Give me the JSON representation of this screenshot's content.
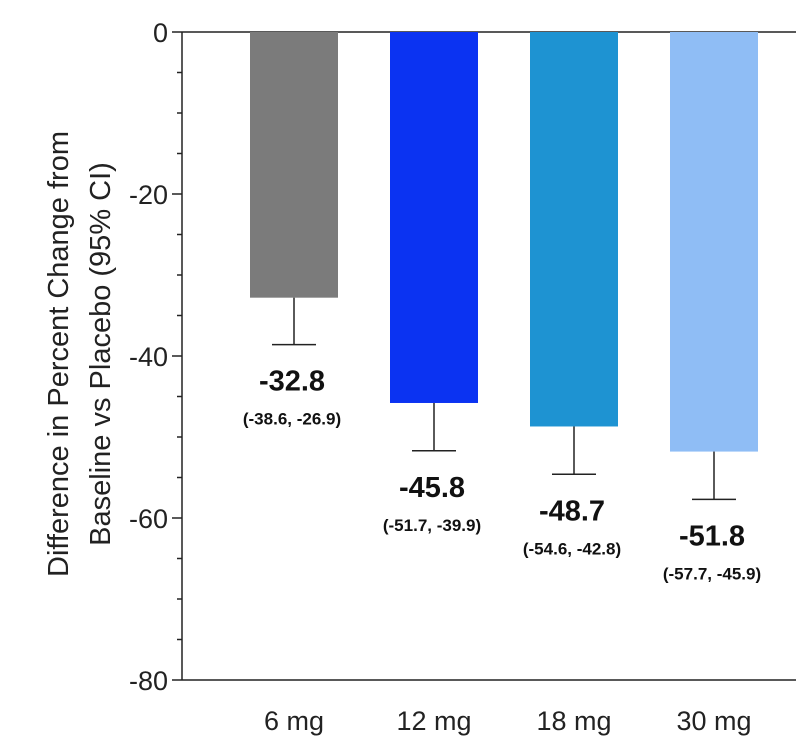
{
  "chart_data": {
    "type": "bar",
    "title": "",
    "xlabel": "",
    "ylabel": [
      "Difference in Percent Change from",
      "Baseline vs Placebo (95% CI)"
    ],
    "ylim": [
      -80,
      0
    ],
    "yticks": [
      0,
      -20,
      -40,
      -60,
      -80
    ],
    "grid": false,
    "legend": "none",
    "categories": [
      "6 mg",
      "12 mg",
      "18 mg",
      "30 mg"
    ],
    "values": [
      -32.8,
      -45.8,
      -48.7,
      -51.8
    ],
    "value_labels": [
      "-32.8",
      "-45.8",
      "-48.7",
      "-51.8"
    ],
    "ci_lower": [
      -38.6,
      -51.7,
      -54.6,
      -57.7
    ],
    "ci_upper": [
      -26.9,
      -39.9,
      -42.8,
      -45.9
    ],
    "ci_labels": [
      "(-38.6, -26.9)",
      "(-51.7, -39.9)",
      "(-54.6, -42.8)",
      "(-57.7, -45.9)"
    ],
    "colors": [
      "#7b7b7b",
      "#0b33f2",
      "#1e93d2",
      "#8fbdf5"
    ]
  }
}
